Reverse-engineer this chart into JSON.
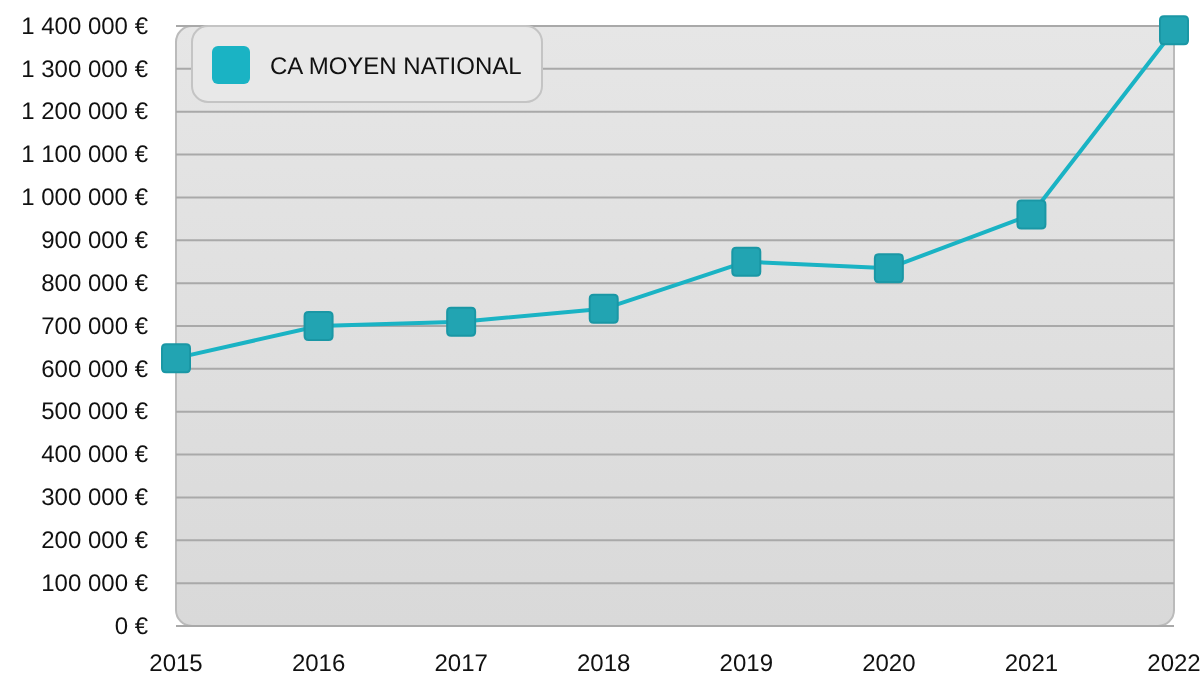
{
  "chart_data": {
    "type": "line",
    "categories": [
      "2015",
      "2016",
      "2017",
      "2018",
      "2019",
      "2020",
      "2021",
      "2022"
    ],
    "series": [
      {
        "name": "CA MOYEN NATIONAL",
        "color": "#1ab3c4",
        "values": [
          625000,
          700000,
          710000,
          740000,
          850000,
          835000,
          960000,
          1390000
        ]
      }
    ],
    "ylim": [
      0,
      1400000
    ],
    "yticks": [
      {
        "value": 0,
        "label": "0 €"
      },
      {
        "value": 100000,
        "label": "100 000 €"
      },
      {
        "value": 200000,
        "label": "200 000 €"
      },
      {
        "value": 300000,
        "label": "300 000 €"
      },
      {
        "value": 400000,
        "label": "400 000 €"
      },
      {
        "value": 500000,
        "label": "500 000 €"
      },
      {
        "value": 600000,
        "label": "600 000 €"
      },
      {
        "value": 700000,
        "label": "700 000 €"
      },
      {
        "value": 800000,
        "label": "800 000 €"
      },
      {
        "value": 900000,
        "label": "900 000 €"
      },
      {
        "value": 1000000,
        "label": "1 000 000 €"
      },
      {
        "value": 1100000,
        "label": "1 100 000 €"
      },
      {
        "value": 1200000,
        "label": "1 200 000 €"
      },
      {
        "value": 1300000,
        "label": "1 300 000 €"
      },
      {
        "value": 1400000,
        "label": "1 400 000 €"
      }
    ],
    "grid": "y",
    "legend": "top left",
    "marker": "square",
    "line_style": "solid"
  }
}
